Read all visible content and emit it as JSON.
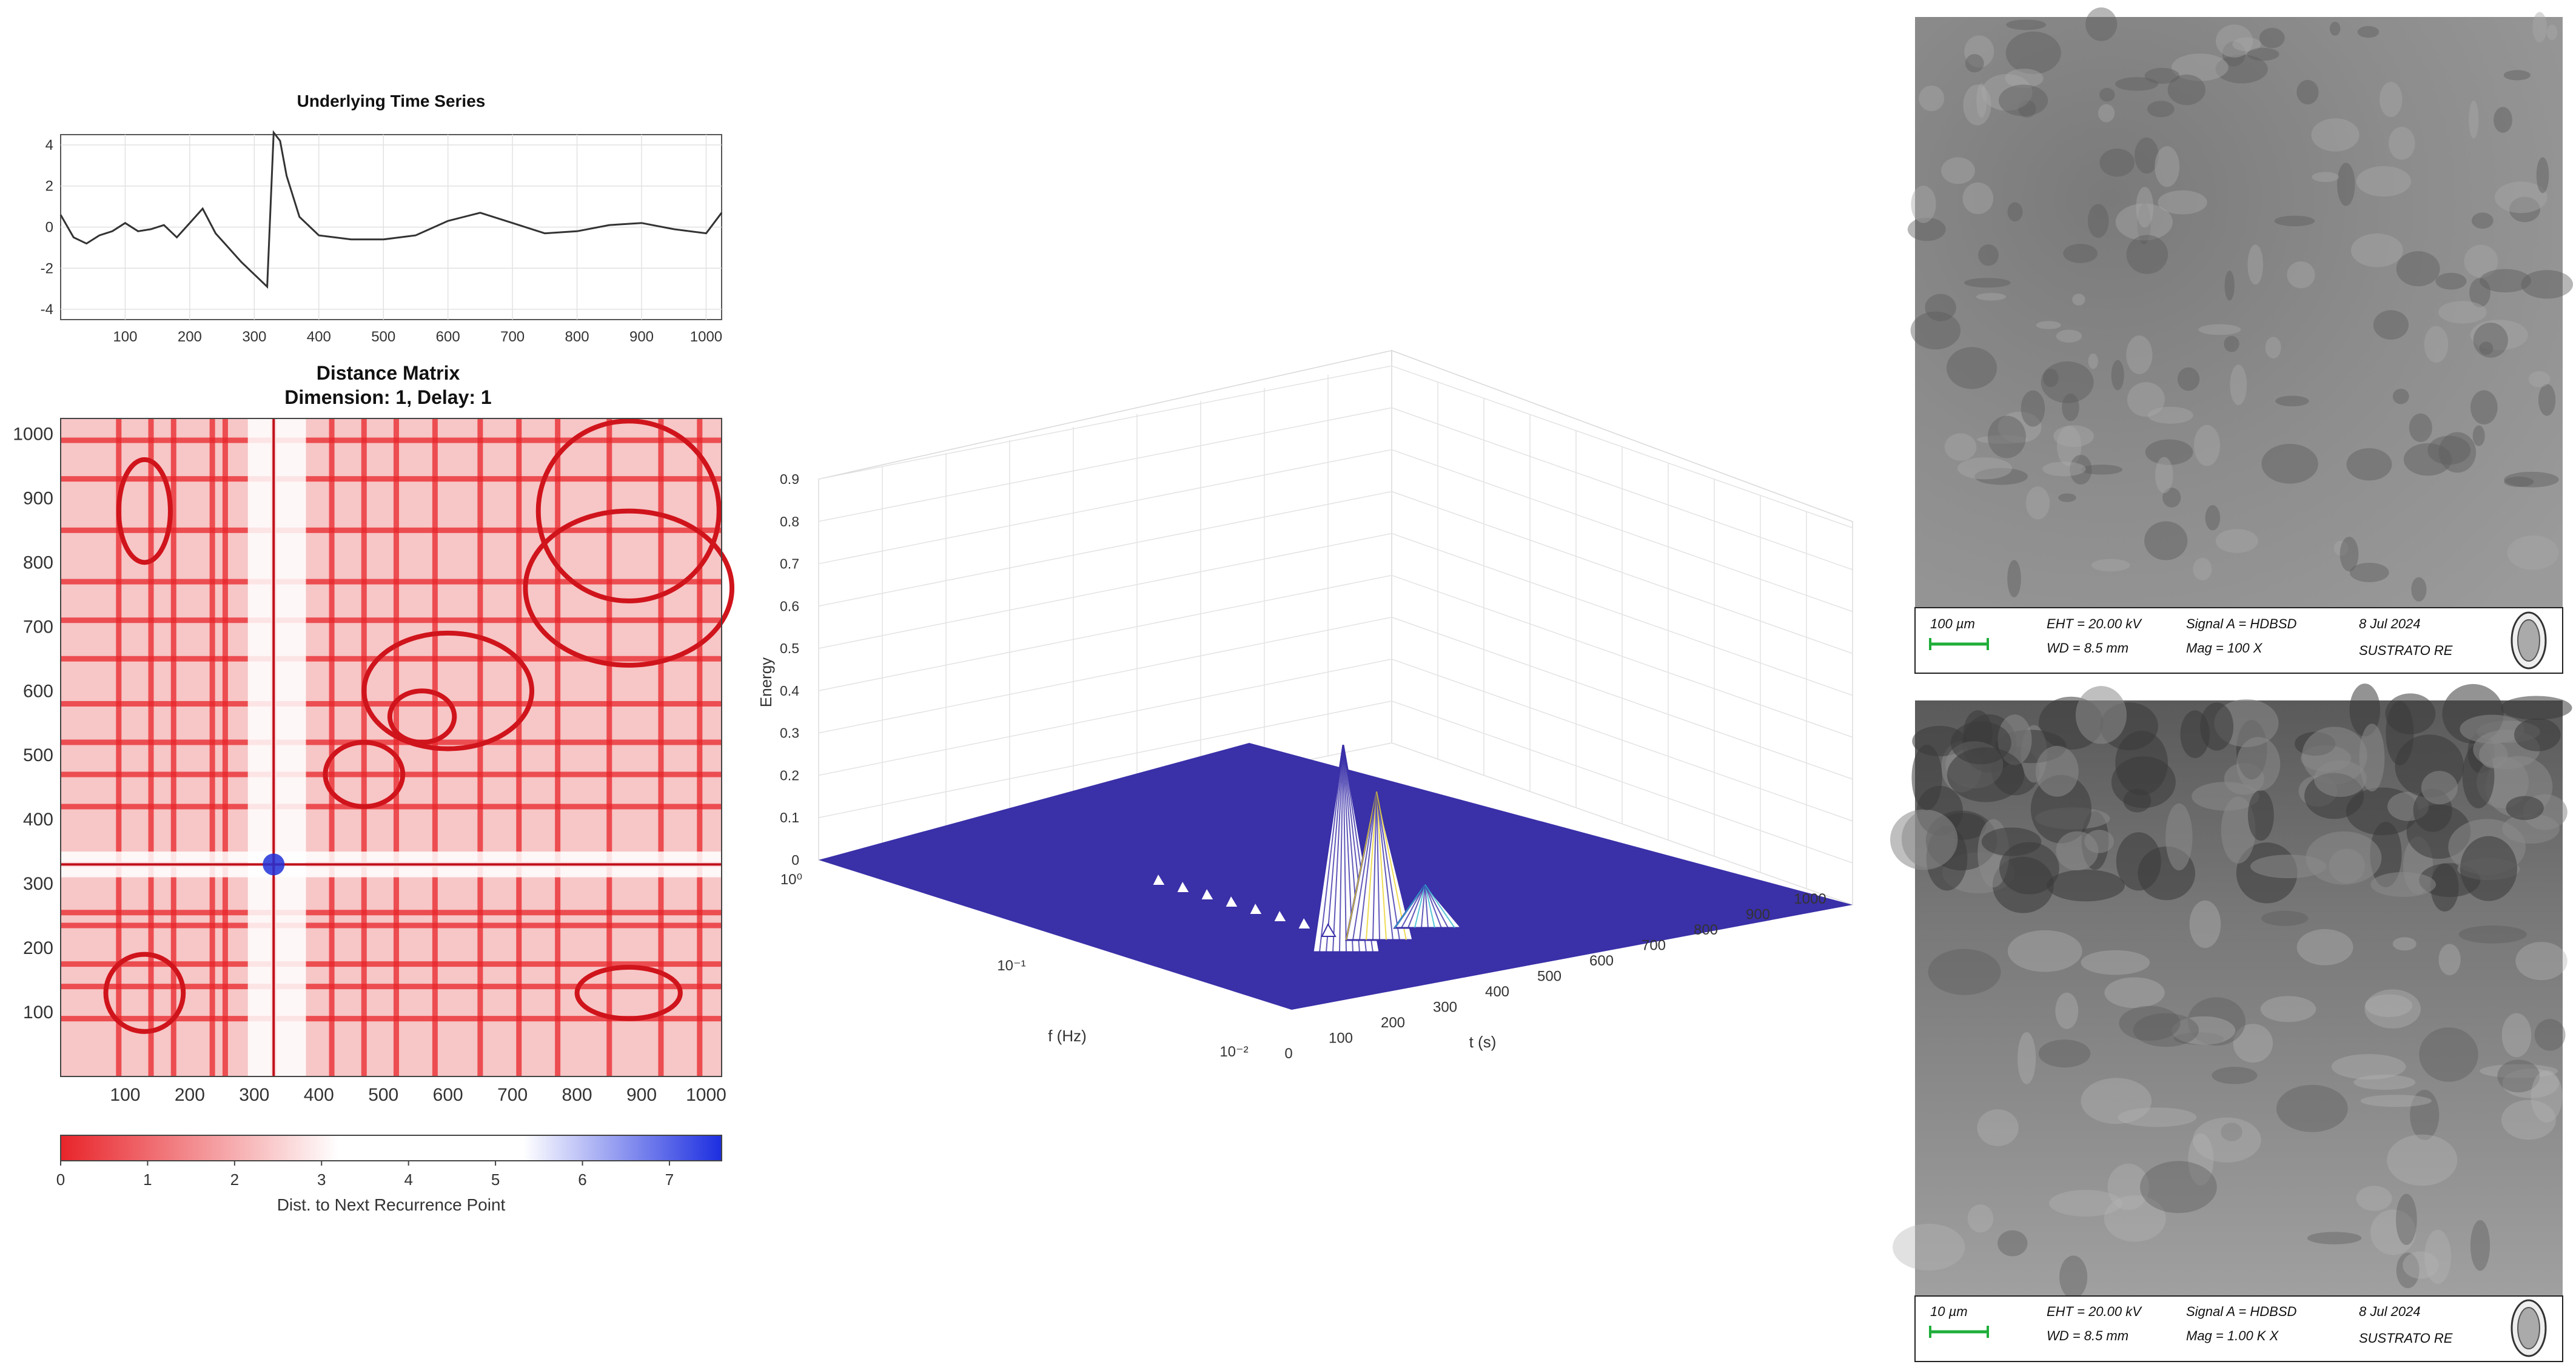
{
  "chart_data": [
    {
      "type": "line",
      "title": "Underlying Time Series",
      "xlim": [
        0,
        1024
      ],
      "ylim": [
        -4.5,
        4.5
      ],
      "xticks": [
        "100",
        "200",
        "300",
        "400",
        "500",
        "600",
        "700",
        "800",
        "900",
        "1000"
      ],
      "yticks": [
        "4",
        "2",
        "0",
        "-2",
        "-4"
      ],
      "grid": true,
      "x": [
        0,
        20,
        40,
        60,
        80,
        100,
        120,
        140,
        160,
        180,
        200,
        220,
        240,
        260,
        280,
        300,
        320,
        330,
        340,
        350,
        370,
        400,
        450,
        500,
        550,
        600,
        650,
        700,
        750,
        800,
        850,
        900,
        950,
        1000,
        1024
      ],
      "y": [
        0.6,
        -0.5,
        -0.8,
        -0.4,
        -0.2,
        0.2,
        -0.2,
        -0.1,
        0.1,
        -0.5,
        0.2,
        0.9,
        -0.3,
        -1.0,
        -1.7,
        -2.3,
        -2.9,
        4.6,
        4.2,
        2.5,
        0.5,
        -0.4,
        -0.6,
        -0.6,
        -0.4,
        0.3,
        0.7,
        0.2,
        -0.3,
        -0.2,
        0.1,
        0.2,
        -0.1,
        -0.3,
        0.7
      ]
    },
    {
      "type": "heatmap",
      "title": "Distance Matrix",
      "subtitle": "Dimension: 1,  Delay: 1",
      "xlim": [
        0,
        1024
      ],
      "ylim": [
        0,
        1024
      ],
      "xticks": [
        "100",
        "200",
        "300",
        "400",
        "500",
        "600",
        "700",
        "800",
        "900",
        "1000"
      ],
      "yticks": [
        "1000",
        "900",
        "800",
        "700",
        "600",
        "500",
        "400",
        "300",
        "200",
        "100"
      ],
      "colorbar": {
        "label": "Dist. to Next Recurrence Point",
        "ticks": [
          "0",
          "1",
          "2",
          "3",
          "4",
          "5",
          "6",
          "7"
        ],
        "range": [
          0,
          7.6
        ],
        "low_color": "#e8242a",
        "mid_color": "#ffffff",
        "high_color": "#1c2ee0"
      },
      "recurrence_lines": [
        90,
        140,
        175,
        235,
        255,
        330,
        420,
        470,
        520,
        580,
        650,
        710,
        770,
        850,
        930,
        990
      ]
    },
    {
      "type": "surface",
      "zlabel": "Energy",
      "xlabel": "f (Hz)",
      "ylabel": "t (s)",
      "zticks": [
        "0.9",
        "0.8",
        "0.7",
        "0.6",
        "0.5",
        "0.4",
        "0.3",
        "0.2",
        "0.1",
        "0"
      ],
      "f_ticks": [
        "10⁰",
        "10⁻¹",
        "10⁻²"
      ],
      "t_ticks": [
        "0",
        "100",
        "200",
        "300",
        "400",
        "500",
        "600",
        "700",
        "800",
        "900",
        "1000"
      ],
      "zlim": [
        0,
        0.9
      ],
      "peaks": [
        {
          "t": 330,
          "f": 0.06,
          "energy": 0.63
        },
        {
          "t": 340,
          "f": 0.09,
          "energy": 0.52
        },
        {
          "t": 360,
          "f": 0.04,
          "energy": 0.3
        }
      ],
      "colors": {
        "base": "#3a30a8",
        "peak_cyan": "#2fb6cc",
        "peak_yellow": "#e8d22a",
        "peak_green": "#3fc46a"
      }
    }
  ],
  "sem_images": [
    {
      "scale_bar": "100 µm",
      "eht": "EHT = 20.00 kV",
      "wd": "WD =  8.5 mm",
      "signal": "Signal A = HDBSD",
      "mag": "Mag =    100 X",
      "date": "8 Jul 2024",
      "sample": "SUSTRATO RE",
      "scale_bar_color": "#1fae3a"
    },
    {
      "scale_bar": "10 µm",
      "eht": "EHT = 20.00 kV",
      "wd": "WD =  8.5 mm",
      "signal": "Signal A = HDBSD",
      "mag": "Mag =   1.00 K X",
      "date": "8 Jul 2024",
      "sample": "SUSTRATO RE",
      "scale_bar_color": "#1fae3a"
    }
  ]
}
